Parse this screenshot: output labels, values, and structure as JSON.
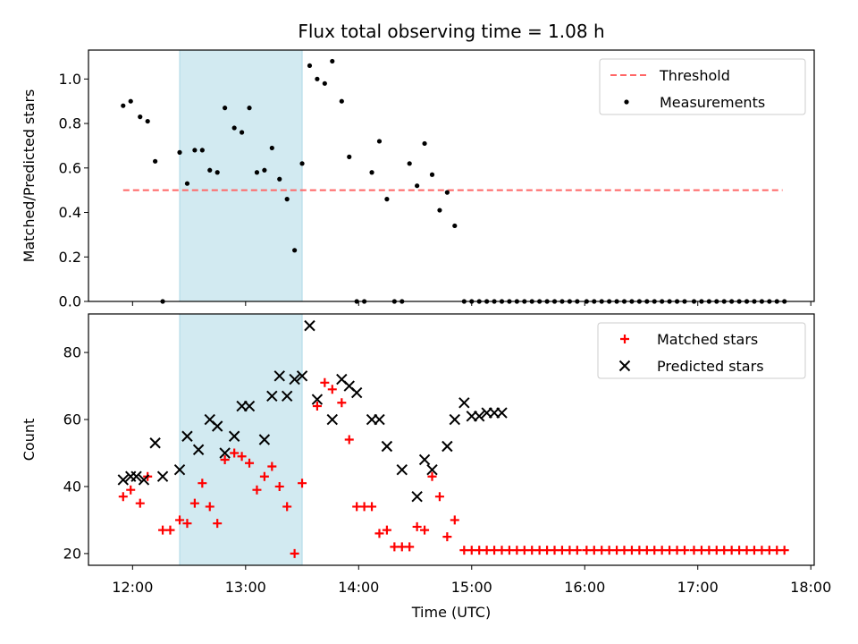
{
  "figure": {
    "title": "Flux total observing time = 1.08 h",
    "xlabel": "Time (UTC)",
    "x_tick_labels": [
      "12:00",
      "13:00",
      "14:00",
      "15:00",
      "16:00",
      "17:00",
      "18:00"
    ]
  },
  "colors": {
    "threshold": "#ff6666",
    "measurements": "#000000",
    "matched": "#ff0000",
    "predicted": "#000000",
    "highlight": "#add8e6"
  },
  "chart_data": [
    {
      "type": "scatter",
      "panel": "top",
      "title": "Flux total observing time = 1.08 h",
      "xlabel": "",
      "ylabel": "Matched/Predicted stars",
      "x_unit": "hours UTC",
      "xlim": [
        11.61,
        18.03
      ],
      "ylim": [
        0,
        1.13
      ],
      "y_ticks": [
        0.0,
        0.2,
        0.4,
        0.6,
        0.8,
        1.0
      ],
      "y_tick_labels": [
        "0.0",
        "0.2",
        "0.4",
        "0.6",
        "0.8",
        "1.0"
      ],
      "highlight_span": [
        "12:25",
        "13:30"
      ],
      "legend": {
        "position": "top-right",
        "entries": [
          "Threshold",
          "Measurements"
        ]
      },
      "series": [
        {
          "name": "Threshold",
          "style": "dashed-line",
          "x": [
            "11:55",
            "17:45"
          ],
          "y": [
            0.5,
            0.5
          ]
        },
        {
          "name": "Measurements",
          "style": "dot",
          "x": [
            "11:55",
            "11:59",
            "12:04",
            "12:08",
            "12:12",
            "12:16",
            "12:25",
            "12:29",
            "12:33",
            "12:37",
            "12:41",
            "12:45",
            "12:49",
            "12:54",
            "12:58",
            "13:02",
            "13:06",
            "13:10",
            "13:14",
            "13:18",
            "13:22",
            "13:26",
            "13:30",
            "13:34",
            "13:38",
            "13:42",
            "13:46",
            "13:51",
            "13:55",
            "13:59",
            "14:03",
            "14:07",
            "14:11",
            "14:15",
            "14:19",
            "14:23",
            "14:27",
            "14:31",
            "14:35",
            "14:39",
            "14:43",
            "14:47",
            "14:51",
            "14:56",
            "15:00",
            "15:04",
            "15:08",
            "15:12",
            "15:16",
            "15:20",
            "15:24",
            "15:28",
            "15:32",
            "15:36",
            "15:40",
            "15:44",
            "15:48",
            "15:52",
            "15:56",
            "16:01",
            "16:05",
            "16:09",
            "16:13",
            "16:17",
            "16:21",
            "16:25",
            "16:29",
            "16:33",
            "16:37",
            "16:41",
            "16:45",
            "16:49",
            "16:53",
            "16:58",
            "17:02",
            "17:06",
            "17:10",
            "17:14",
            "17:18",
            "17:22",
            "17:26",
            "17:30",
            "17:34",
            "17:38",
            "17:42",
            "17:46"
          ],
          "y": [
            0.88,
            0.9,
            0.83,
            0.81,
            0.63,
            0.0,
            0.67,
            0.53,
            0.68,
            0.68,
            0.59,
            0.58,
            0.87,
            0.78,
            0.76,
            0.87,
            0.58,
            0.59,
            0.69,
            0.55,
            0.46,
            0.23,
            0.62,
            1.06,
            1.0,
            0.98,
            1.08,
            0.9,
            0.65,
            0.0,
            0.0,
            0.58,
            0.72,
            0.46,
            0.0,
            0.0,
            0.62,
            0.52,
            0.71,
            0.57,
            0.41,
            0.49,
            0.34,
            0.0,
            0.0,
            0.0,
            0.0,
            0.0,
            0.0,
            0.0,
            0.0,
            0.0,
            0.0,
            0.0,
            0.0,
            0.0,
            0.0,
            0.0,
            0.0,
            0.0,
            0.0,
            0.0,
            0.0,
            0.0,
            0.0,
            0.0,
            0.0,
            0.0,
            0.0,
            0.0,
            0.0,
            0.0,
            0.0,
            0.0,
            0.0,
            0.0,
            0.0,
            0.0,
            0.0,
            0.0,
            0.0,
            0.0,
            0.0,
            0.0,
            0.0,
            0.0
          ]
        }
      ]
    },
    {
      "type": "scatter",
      "panel": "bottom",
      "xlabel": "Time (UTC)",
      "ylabel": "Count",
      "x_unit": "hours UTC",
      "xlim": [
        11.61,
        18.03
      ],
      "ylim": [
        16.5,
        91.5
      ],
      "y_ticks": [
        20,
        40,
        60,
        80
      ],
      "y_tick_labels": [
        "20",
        "40",
        "60",
        "80"
      ],
      "x_ticks": [
        "12:00",
        "13:00",
        "14:00",
        "15:00",
        "16:00",
        "17:00",
        "18:00"
      ],
      "highlight_span": [
        "12:25",
        "13:30"
      ],
      "legend": {
        "position": "top-right",
        "entries": [
          "Matched stars",
          "Predicted stars"
        ]
      },
      "series": [
        {
          "name": "Matched stars",
          "style": "plus",
          "x": [
            "11:55",
            "11:59",
            "12:04",
            "12:08",
            "12:16",
            "12:20",
            "12:25",
            "12:29",
            "12:33",
            "12:37",
            "12:41",
            "12:45",
            "12:49",
            "12:54",
            "12:58",
            "13:02",
            "13:06",
            "13:10",
            "13:14",
            "13:18",
            "13:22",
            "13:26",
            "13:30",
            "13:38",
            "13:42",
            "13:46",
            "13:51",
            "13:55",
            "13:59",
            "14:03",
            "14:07",
            "14:11",
            "14:15",
            "14:19",
            "14:23",
            "14:27",
            "14:31",
            "14:35",
            "14:39",
            "14:43",
            "14:47",
            "14:51",
            "14:56",
            "15:00",
            "15:04",
            "15:08",
            "15:12",
            "15:16",
            "15:20",
            "15:24",
            "15:28",
            "15:32",
            "15:36",
            "15:40",
            "15:44",
            "15:48",
            "15:52",
            "15:56",
            "16:01",
            "16:05",
            "16:09",
            "16:13",
            "16:17",
            "16:21",
            "16:25",
            "16:29",
            "16:33",
            "16:37",
            "16:41",
            "16:45",
            "16:49",
            "16:53",
            "16:58",
            "17:02",
            "17:06",
            "17:10",
            "17:14",
            "17:18",
            "17:22",
            "17:26",
            "17:30",
            "17:34",
            "17:38",
            "17:42",
            "17:46"
          ],
          "y": [
            37,
            39,
            35,
            43,
            27,
            27,
            30,
            29,
            35,
            41,
            34,
            29,
            48,
            50,
            49,
            47,
            39,
            43,
            46,
            40,
            34,
            20,
            41,
            64,
            71,
            69,
            65,
            54,
            34,
            34,
            34,
            26,
            27,
            22,
            22,
            22,
            28,
            27,
            43,
            37,
            25,
            30,
            21,
            21,
            21,
            21,
            21,
            21,
            21,
            21,
            21,
            21,
            21,
            21,
            21,
            21,
            21,
            21,
            21,
            21,
            21,
            21,
            21,
            21,
            21,
            21,
            21,
            21,
            21,
            21,
            21,
            21,
            21,
            21,
            21,
            21,
            21,
            21,
            21,
            21,
            21,
            21,
            21,
            21,
            21
          ]
        },
        {
          "name": "Predicted stars",
          "style": "x",
          "x": [
            "11:55",
            "11:59",
            "12:02",
            "12:06",
            "12:12",
            "12:16",
            "12:25",
            "12:29",
            "12:35",
            "12:41",
            "12:45",
            "12:49",
            "12:54",
            "12:58",
            "13:02",
            "13:10",
            "13:14",
            "13:18",
            "13:22",
            "13:26",
            "13:30",
            "13:34",
            "13:38",
            "13:46",
            "13:51",
            "13:55",
            "13:59",
            "14:07",
            "14:11",
            "14:15",
            "14:23",
            "14:31",
            "14:35",
            "14:39",
            "14:47",
            "14:51",
            "14:56",
            "15:00",
            "15:04",
            "15:08",
            "15:12",
            "15:16"
          ],
          "y": [
            42,
            43,
            43,
            42,
            53,
            43,
            45,
            55,
            51,
            60,
            58,
            50,
            55,
            64,
            64,
            54,
            67,
            73,
            67,
            72,
            73,
            88,
            66,
            60,
            72,
            70,
            68,
            60,
            60,
            52,
            45,
            37,
            48,
            45,
            52,
            60,
            65,
            61,
            61,
            62,
            62,
            62
          ]
        }
      ]
    }
  ]
}
